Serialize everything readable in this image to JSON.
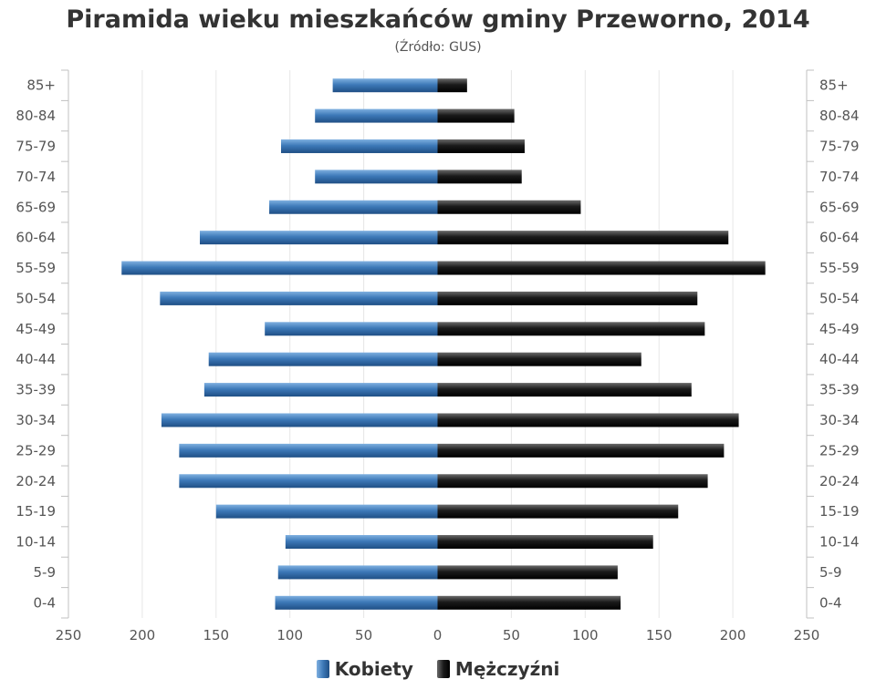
{
  "chart_data": {
    "type": "bar",
    "orientation": "horizontal",
    "title": "Piramida wieku mieszkańców gminy Przeworno, 2014",
    "subtitle": "(Źródło: GUS)",
    "categories": [
      "85+",
      "80-84",
      "75-79",
      "70-74",
      "65-69",
      "60-64",
      "55-59",
      "50-54",
      "45-49",
      "40-44",
      "35-39",
      "30-34",
      "25-29",
      "20-24",
      "15-19",
      "10-14",
      "5-9",
      "0-4"
    ],
    "series": [
      {
        "name": "Kobiety",
        "color": "#3d79b8",
        "values": [
          71,
          83,
          106,
          83,
          114,
          161,
          214,
          188,
          117,
          155,
          158,
          187,
          175,
          175,
          150,
          103,
          108,
          110
        ]
      },
      {
        "name": "Mężczyźni",
        "color": "#1a1a1a",
        "values": [
          20,
          52,
          59,
          57,
          97,
          197,
          222,
          176,
          181,
          138,
          172,
          204,
          194,
          183,
          163,
          146,
          122,
          124
        ]
      }
    ],
    "xlim": [
      -250,
      250
    ],
    "xticks": [
      -250,
      -200,
      -150,
      -100,
      -50,
      0,
      50,
      100,
      150,
      200,
      250
    ],
    "xtick_labels": [
      "250",
      "200",
      "150",
      "100",
      "50",
      "0",
      "50",
      "100",
      "150",
      "200",
      "250"
    ],
    "grid": true,
    "legend_position": "bottom-center"
  }
}
